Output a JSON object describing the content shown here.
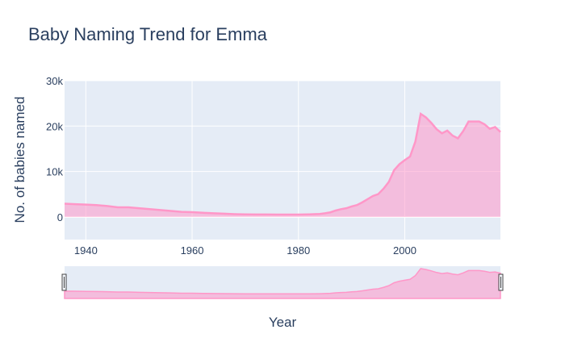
{
  "chart_data": {
    "type": "area",
    "title": "Baby Naming Trend for Emma",
    "xlabel": "Year",
    "ylabel": "No. of babies named",
    "xlim": [
      1936,
      2018
    ],
    "ylim": [
      -5000,
      30000
    ],
    "x_ticks": [
      1940,
      1960,
      1980,
      2000
    ],
    "x_tick_labels": [
      "1940",
      "1960",
      "1980",
      "2000"
    ],
    "y_ticks": [
      0,
      10000,
      20000,
      30000
    ],
    "y_tick_labels": [
      "0",
      "10k",
      "20k",
      "30k"
    ],
    "grid": true,
    "range_slider": true,
    "colors": {
      "line": "#ff97c8",
      "fill": "rgba(255,151,200,0.55)",
      "plot_bg": "#e5ecf6",
      "grid": "#ffffff",
      "text": "#2a3f5f",
      "slider_fill": "rgba(255,151,200,0.55)"
    },
    "series": [
      {
        "x": [
          1936,
          1938,
          1940,
          1942,
          1944,
          1946,
          1948,
          1950,
          1952,
          1954,
          1956,
          1958,
          1960,
          1962,
          1964,
          1966,
          1968,
          1970,
          1972,
          1974,
          1976,
          1978,
          1980,
          1982,
          1984,
          1985,
          1986,
          1987,
          1988,
          1989,
          1990,
          1991,
          1992,
          1993,
          1994,
          1995,
          1996,
          1997,
          1998,
          1999,
          2000,
          2001,
          2002,
          2003,
          2004,
          2005,
          2006,
          2007,
          2008,
          2009,
          2010,
          2011,
          2012,
          2013,
          2014,
          2015,
          2016,
          2017,
          2018
        ],
        "y": [
          2900,
          2800,
          2700,
          2600,
          2400,
          2100,
          2100,
          1900,
          1700,
          1500,
          1300,
          1100,
          1050,
          900,
          800,
          700,
          600,
          550,
          520,
          520,
          500,
          500,
          500,
          550,
          650,
          800,
          1000,
          1400,
          1700,
          1900,
          2300,
          2600,
          3200,
          3900,
          4600,
          5000,
          6200,
          7700,
          10300,
          11600,
          12500,
          13300,
          16600,
          22700,
          21900,
          20700,
          19300,
          18400,
          19000,
          17900,
          17300,
          18900,
          21000,
          21000,
          21000,
          20400,
          19400,
          19800,
          18700
        ]
      }
    ]
  }
}
